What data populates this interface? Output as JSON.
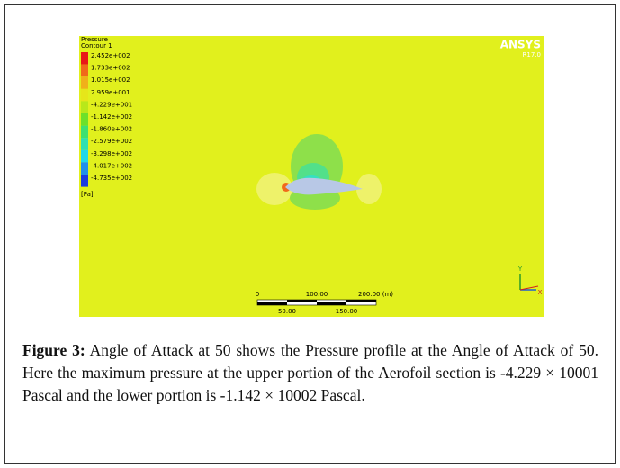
{
  "figure": {
    "legend": {
      "title": "Pressure",
      "subtitle": "Contour 1",
      "levels": [
        "2.452e+002",
        "1.733e+002",
        "1.015e+002",
        "2.959e+001",
        "-4.229e+001",
        "-1.142e+002",
        "-1.860e+002",
        "-2.579e+002",
        "-3.298e+002",
        "-4.017e+002",
        "-4.735e+002"
      ],
      "unit": "[Pa]"
    },
    "logo": {
      "name": "ANSYS",
      "version": "R17.0"
    },
    "scale_bar": {
      "top_labels": [
        "0",
        "100.00",
        "200.00 (m)"
      ],
      "bottom_labels": [
        "50.00",
        "150.00"
      ]
    },
    "axes": {
      "y": "Y",
      "x": "X"
    }
  },
  "caption": {
    "label": "Figure 3:",
    "text": "Angle of Attack at 50 shows the Pressure profile at the Angle of Attack of 50. Here the maximum pressure at the upper portion of the Aerofoil section is -4.229 × 10001 Pascal and the lower portion is -1.142 × 10002 Pascal."
  }
}
